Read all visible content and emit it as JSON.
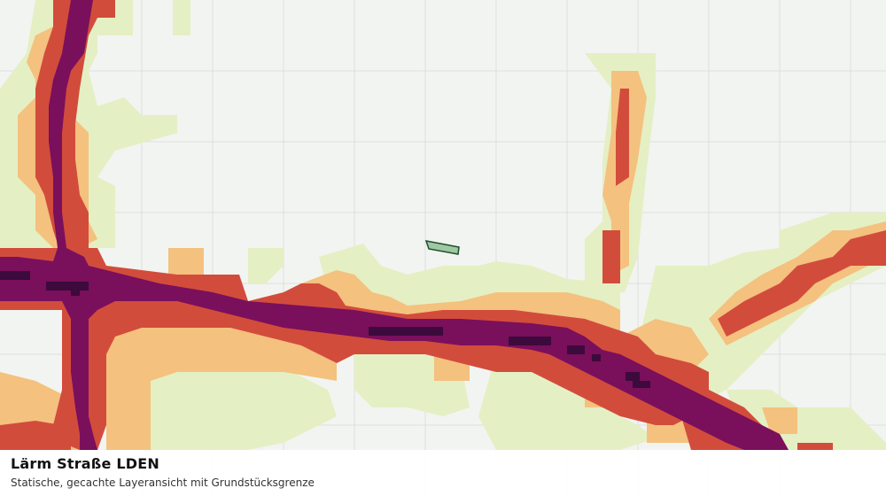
{
  "map": {
    "layer": "Lärm Straße LDEN",
    "background_color": "#f2f4f1",
    "grid_color": "#dcdfdb",
    "noise_classes": [
      {
        "level": 1,
        "color": "#e5efc4"
      },
      {
        "level": 2,
        "color": "#f4c17f"
      },
      {
        "level": 3,
        "color": "#d24c3c"
      },
      {
        "level": 4,
        "color": "#7a0f5c"
      },
      {
        "level": 5,
        "color": "#3c0a3c"
      }
    ],
    "parcel_color": "#9ec9a3",
    "parcel_outline_color": "#1f4d2a"
  },
  "caption": {
    "title": "Lärm Straße LDEN",
    "subtitle": "Statische, gecachte Layeransicht mit Grundstücksgrenze"
  }
}
